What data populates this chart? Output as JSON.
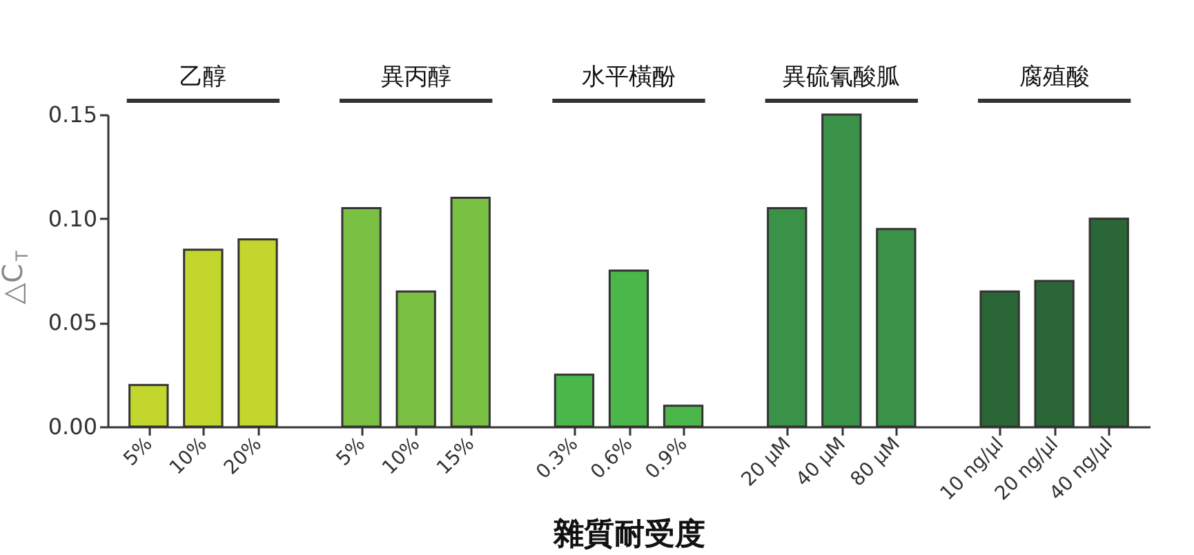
{
  "chart_data": {
    "type": "bar",
    "xlabel": "雜質耐受度",
    "ylabel": "△C$_{T}$",
    "categories": [
      "5%",
      "10%",
      "20%",
      "5%",
      "10%",
      "15%",
      "0.3%",
      "0.6%",
      "0.9%",
      "20 μM",
      "40 μM",
      "80 μM",
      "10 ng/μl",
      "20 ng/μl",
      "40 ng/μl"
    ],
    "values": [
      0.02,
      0.085,
      0.09,
      0.105,
      0.065,
      0.11,
      0.025,
      0.075,
      0.01,
      0.105,
      0.15,
      0.095,
      0.065,
      0.07,
      0.1
    ],
    "colors": [
      "#c2d62e",
      "#c2d62e",
      "#c2d62e",
      "#7ac143",
      "#7ac143",
      "#7ac143",
      "#4bb74a",
      "#4bb74a",
      "#4bb74a",
      "#3a9248",
      "#3a9248",
      "#3a9248",
      "#2b6637",
      "#2b6637",
      "#2b6637"
    ],
    "annotations": [
      "乙醇",
      "異丙醇",
      "水平橫酚",
      "異硫氰酸胍",
      "腐殖酸"
    ],
    "ylim": [
      0,
      0.15
    ],
    "yticks": [
      {
        "value": 0,
        "label": "0.00"
      },
      {
        "value": 0.05,
        "label": "0.05"
      },
      {
        "value": 0.1,
        "label": "0.10"
      },
      {
        "value": 0.15,
        "label": "0.15"
      }
    ],
    "grid": false,
    "legend": false
  }
}
